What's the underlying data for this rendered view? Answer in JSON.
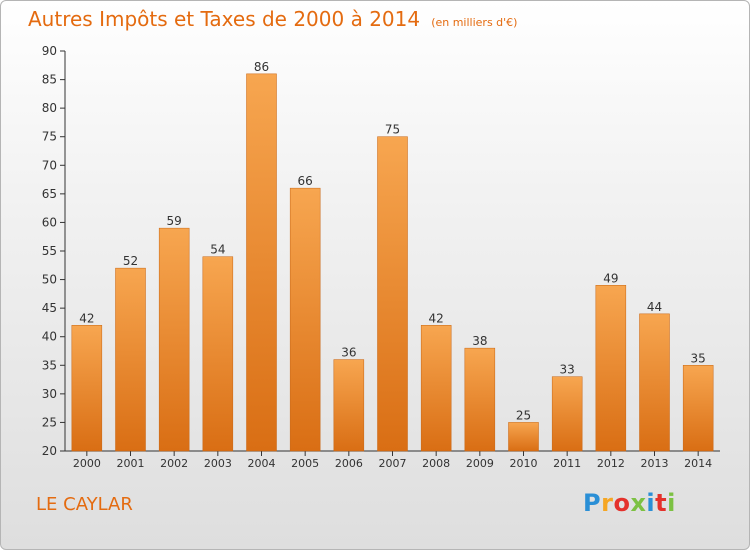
{
  "title": "Autres Impôts et Taxes de 2000 à 2014",
  "subtitle": "(en milliers d'€)",
  "city": "LE CAYLAR",
  "logo": {
    "text": "Proxiti",
    "colors": [
      "#2a8fd6",
      "#f5a623",
      "#e4312b",
      "#7cc142",
      "#2a8fd6",
      "#e4312b",
      "#7cc142"
    ]
  },
  "colors": {
    "bar_top": "#f7a650",
    "bar_bottom": "#d96e14",
    "bar_edge": "#c7630f",
    "title": "#e46b10"
  },
  "chart_data": {
    "type": "bar",
    "categories": [
      "2000",
      "2001",
      "2002",
      "2003",
      "2004",
      "2005",
      "2006",
      "2007",
      "2008",
      "2009",
      "2010",
      "2011",
      "2012",
      "2013",
      "2014"
    ],
    "values": [
      42,
      52,
      59,
      54,
      86,
      66,
      36,
      75,
      42,
      38,
      25,
      33,
      49,
      44,
      35
    ],
    "ylim": [
      20,
      90
    ],
    "yticks": [
      20,
      25,
      30,
      35,
      40,
      45,
      50,
      55,
      60,
      65,
      70,
      75,
      80,
      85,
      90
    ],
    "grid": false
  }
}
